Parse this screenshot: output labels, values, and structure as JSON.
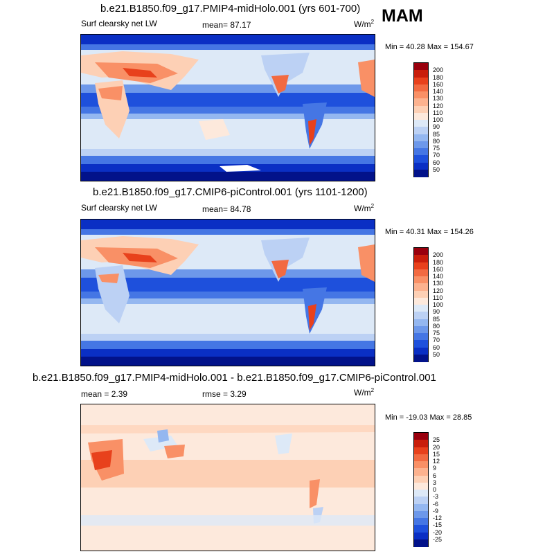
{
  "season": "MAM",
  "units": {
    "base": "W/m",
    "exp": "2"
  },
  "panels": [
    {
      "title": "b.e21.B1850.f09_g17.PMIP4-midHolo.001 (yrs 601-700)",
      "left_label": "Surf clearsky net LW",
      "stat_label": "mean=  87.17",
      "minmax": "Min =  40.28 Max = 154.67",
      "colorbar": {
        "labels": [
          "200",
          "180",
          "160",
          "140",
          "130",
          "120",
          "110",
          "100",
          "90",
          "85",
          "80",
          "75",
          "70",
          "60",
          "50"
        ],
        "colors": [
          "#99000d",
          "#c91e0b",
          "#e8411c",
          "#f26a41",
          "#f99066",
          "#fcb28f",
          "#fdd0b5",
          "#fde9dc",
          "#dde9f7",
          "#bcd1f4",
          "#94b7f0",
          "#6d98ea",
          "#4576e4",
          "#1e50dc",
          "#0a2fc4",
          "#02128a"
        ]
      },
      "chart_data": {
        "type": "heatmap",
        "field": "Surf clearsky net LW",
        "mean": 87.17,
        "min": 40.28,
        "max": 154.67,
        "levels": [
          50,
          60,
          70,
          75,
          80,
          85,
          90,
          100,
          110,
          120,
          130,
          140,
          160,
          180,
          200
        ]
      }
    },
    {
      "title": "b.e21.B1850.f09_g17.CMIP6-piControl.001 (yrs 1101-1200)",
      "left_label": "Surf clearsky net LW",
      "stat_label": "mean=  84.78",
      "minmax": "Min =  40.31 Max = 154.26",
      "colorbar": {
        "labels": [
          "200",
          "180",
          "160",
          "140",
          "130",
          "120",
          "110",
          "100",
          "90",
          "85",
          "80",
          "75",
          "70",
          "60",
          "50"
        ],
        "colors": [
          "#99000d",
          "#c91e0b",
          "#e8411c",
          "#f26a41",
          "#f99066",
          "#fcb28f",
          "#fdd0b5",
          "#fde9dc",
          "#dde9f7",
          "#bcd1f4",
          "#94b7f0",
          "#6d98ea",
          "#4576e4",
          "#1e50dc",
          "#0a2fc4",
          "#02128a"
        ]
      },
      "chart_data": {
        "type": "heatmap",
        "field": "Surf clearsky net LW",
        "mean": 84.78,
        "min": 40.31,
        "max": 154.26,
        "levels": [
          50,
          60,
          70,
          75,
          80,
          85,
          90,
          100,
          110,
          120,
          130,
          140,
          160,
          180,
          200
        ]
      }
    },
    {
      "title": "b.e21.B1850.f09_g17.PMIP4-midHolo.001 - b.e21.B1850.f09_g17.CMIP6-piControl.001",
      "left_label": "mean =  2.39",
      "stat_label": "rmse =  3.29",
      "minmax": "Min = -19.03 Max =  28.85",
      "colorbar": {
        "labels": [
          "25",
          "20",
          "15",
          "12",
          "9",
          "6",
          "3",
          "0",
          "-3",
          "-6",
          "-9",
          "-12",
          "-15",
          "-20",
          "-25"
        ],
        "colors": [
          "#99000d",
          "#c91e0b",
          "#e8411c",
          "#f26a41",
          "#f99066",
          "#fcb28f",
          "#fdd0b5",
          "#fde9dc",
          "#dde9f7",
          "#bcd1f4",
          "#94b7f0",
          "#6d98ea",
          "#4576e4",
          "#1e50dc",
          "#0a2fc4",
          "#02128a"
        ]
      },
      "chart_data": {
        "type": "heatmap",
        "field": "difference",
        "mean": 2.39,
        "rmse": 3.29,
        "min": -19.03,
        "max": 28.85,
        "levels": [
          -25,
          -20,
          -15,
          -12,
          -9,
          -6,
          -3,
          0,
          3,
          6,
          9,
          12,
          15,
          20,
          25
        ]
      }
    }
  ]
}
